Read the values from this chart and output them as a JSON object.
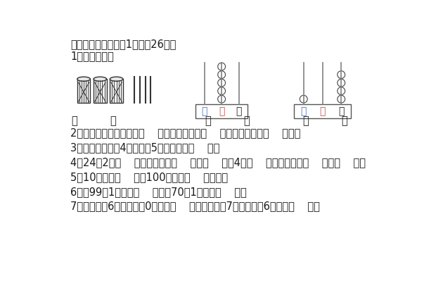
{
  "title_line": "一、填一填。（每空1分，全26分）",
  "q1_label": "1、看图写数。",
  "q2": "2、从右边起，第一位是（    ）位，第二位是（    ）位，百位是第（    ）位。",
  "q3": "3、一个数十位是4，个位是5，这个数是（    ）。",
  "q4": "4、24的2在（    ）位上，表示（    ）个（    ），4在（    ）位上，表示（    ）个（    ）。",
  "q5": "5、10个十是（    ），100里面有（    ）个一。",
  "q6": "6、比99多1的数是（    ），比70少1的数是（    ）。",
  "q7": "7、十位上是6，个位上是0的数是（    ）；个位上是7，十位上是6的数是（    ）。",
  "bai": "百",
  "shi": "十",
  "ge": "个",
  "bracket1": "（          ）",
  "bg_color": "#ffffff",
  "text_color": "#1a1a1a",
  "blue_color": "#4472c4",
  "orange_color": "#c0504d",
  "rod_color": "#808080",
  "bead_edge": "#404040",
  "bundle_color": "#d0d0d0"
}
